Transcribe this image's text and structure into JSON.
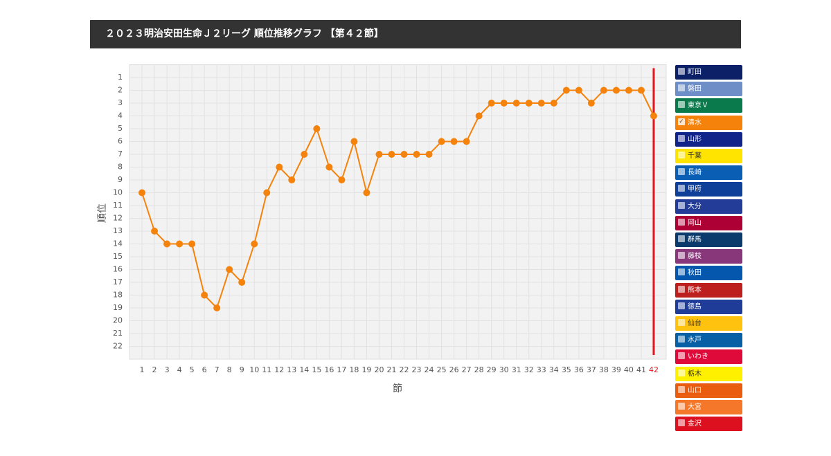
{
  "header": {
    "title": "２０２３明治安田生命Ｊ２リーグ 順位推移グラフ 【第４２節】"
  },
  "chart_data": {
    "type": "line",
    "x_label": "節",
    "y_label": "順位",
    "x": [
      1,
      2,
      3,
      4,
      5,
      6,
      7,
      8,
      9,
      10,
      11,
      12,
      13,
      14,
      15,
      16,
      17,
      18,
      19,
      20,
      21,
      22,
      23,
      24,
      25,
      26,
      27,
      28,
      29,
      30,
      31,
      32,
      33,
      34,
      35,
      36,
      37,
      38,
      39,
      40,
      41,
      42
    ],
    "xlim": [
      0,
      43
    ],
    "xticks": [
      1,
      2,
      3,
      4,
      5,
      6,
      7,
      8,
      9,
      10,
      11,
      12,
      13,
      14,
      15,
      16,
      17,
      18,
      19,
      20,
      21,
      22,
      23,
      24,
      25,
      26,
      27,
      28,
      29,
      30,
      31,
      32,
      33,
      34,
      35,
      36,
      37,
      38,
      39,
      40,
      41,
      42
    ],
    "ylim": [
      23,
      0
    ],
    "yticks": [
      1,
      2,
      3,
      4,
      5,
      6,
      7,
      8,
      9,
      10,
      11,
      12,
      13,
      14,
      15,
      16,
      17,
      18,
      19,
      20,
      21,
      22
    ],
    "grid": true,
    "current_x": 42,
    "current_color": "#e8141e",
    "series": [
      {
        "name": "町田",
        "color": "#0b2066",
        "visible": false
      },
      {
        "name": "磐田",
        "color": "#6d8ec6",
        "visible": false
      },
      {
        "name": "東京Ｖ",
        "color": "#0a7a4c",
        "visible": false
      },
      {
        "name": "清水",
        "color": "#f5820a",
        "visible": true,
        "values": [
          10,
          13,
          14,
          14,
          14,
          18,
          19,
          16,
          17,
          14,
          10,
          8,
          9,
          7,
          5,
          8,
          9,
          6,
          10,
          7,
          7,
          7,
          7,
          7,
          6,
          6,
          6,
          4,
          3,
          3,
          3,
          3,
          3,
          3,
          2,
          2,
          3,
          2,
          2,
          2,
          2,
          4
        ]
      },
      {
        "name": "山形",
        "color": "#10248a",
        "visible": false
      },
      {
        "name": "千葉",
        "color": "#ffe400",
        "visible": false
      },
      {
        "name": "長崎",
        "color": "#0a5fb4",
        "visible": false
      },
      {
        "name": "甲府",
        "color": "#0e3f99",
        "visible": false
      },
      {
        "name": "大分",
        "color": "#233c98",
        "visible": false
      },
      {
        "name": "岡山",
        "color": "#ad0035",
        "visible": false
      },
      {
        "name": "群馬",
        "color": "#0b3a6c",
        "visible": false
      },
      {
        "name": "藤枝",
        "color": "#88387a",
        "visible": false
      },
      {
        "name": "秋田",
        "color": "#0457ac",
        "visible": false
      },
      {
        "name": "熊本",
        "color": "#bd1e1e",
        "visible": false
      },
      {
        "name": "徳島",
        "color": "#1f3c98",
        "visible": false
      },
      {
        "name": "仙台",
        "color": "#ffc20e",
        "visible": false
      },
      {
        "name": "水戸",
        "color": "#075fa6",
        "visible": false
      },
      {
        "name": "いわき",
        "color": "#df0a3a",
        "visible": false
      },
      {
        "name": "栃木",
        "color": "#fff000",
        "visible": false
      },
      {
        "name": "山口",
        "color": "#ea5d10",
        "visible": false
      },
      {
        "name": "大宮",
        "color": "#f5782a",
        "visible": false
      },
      {
        "name": "金沢",
        "color": "#dd1020",
        "visible": false
      }
    ]
  }
}
